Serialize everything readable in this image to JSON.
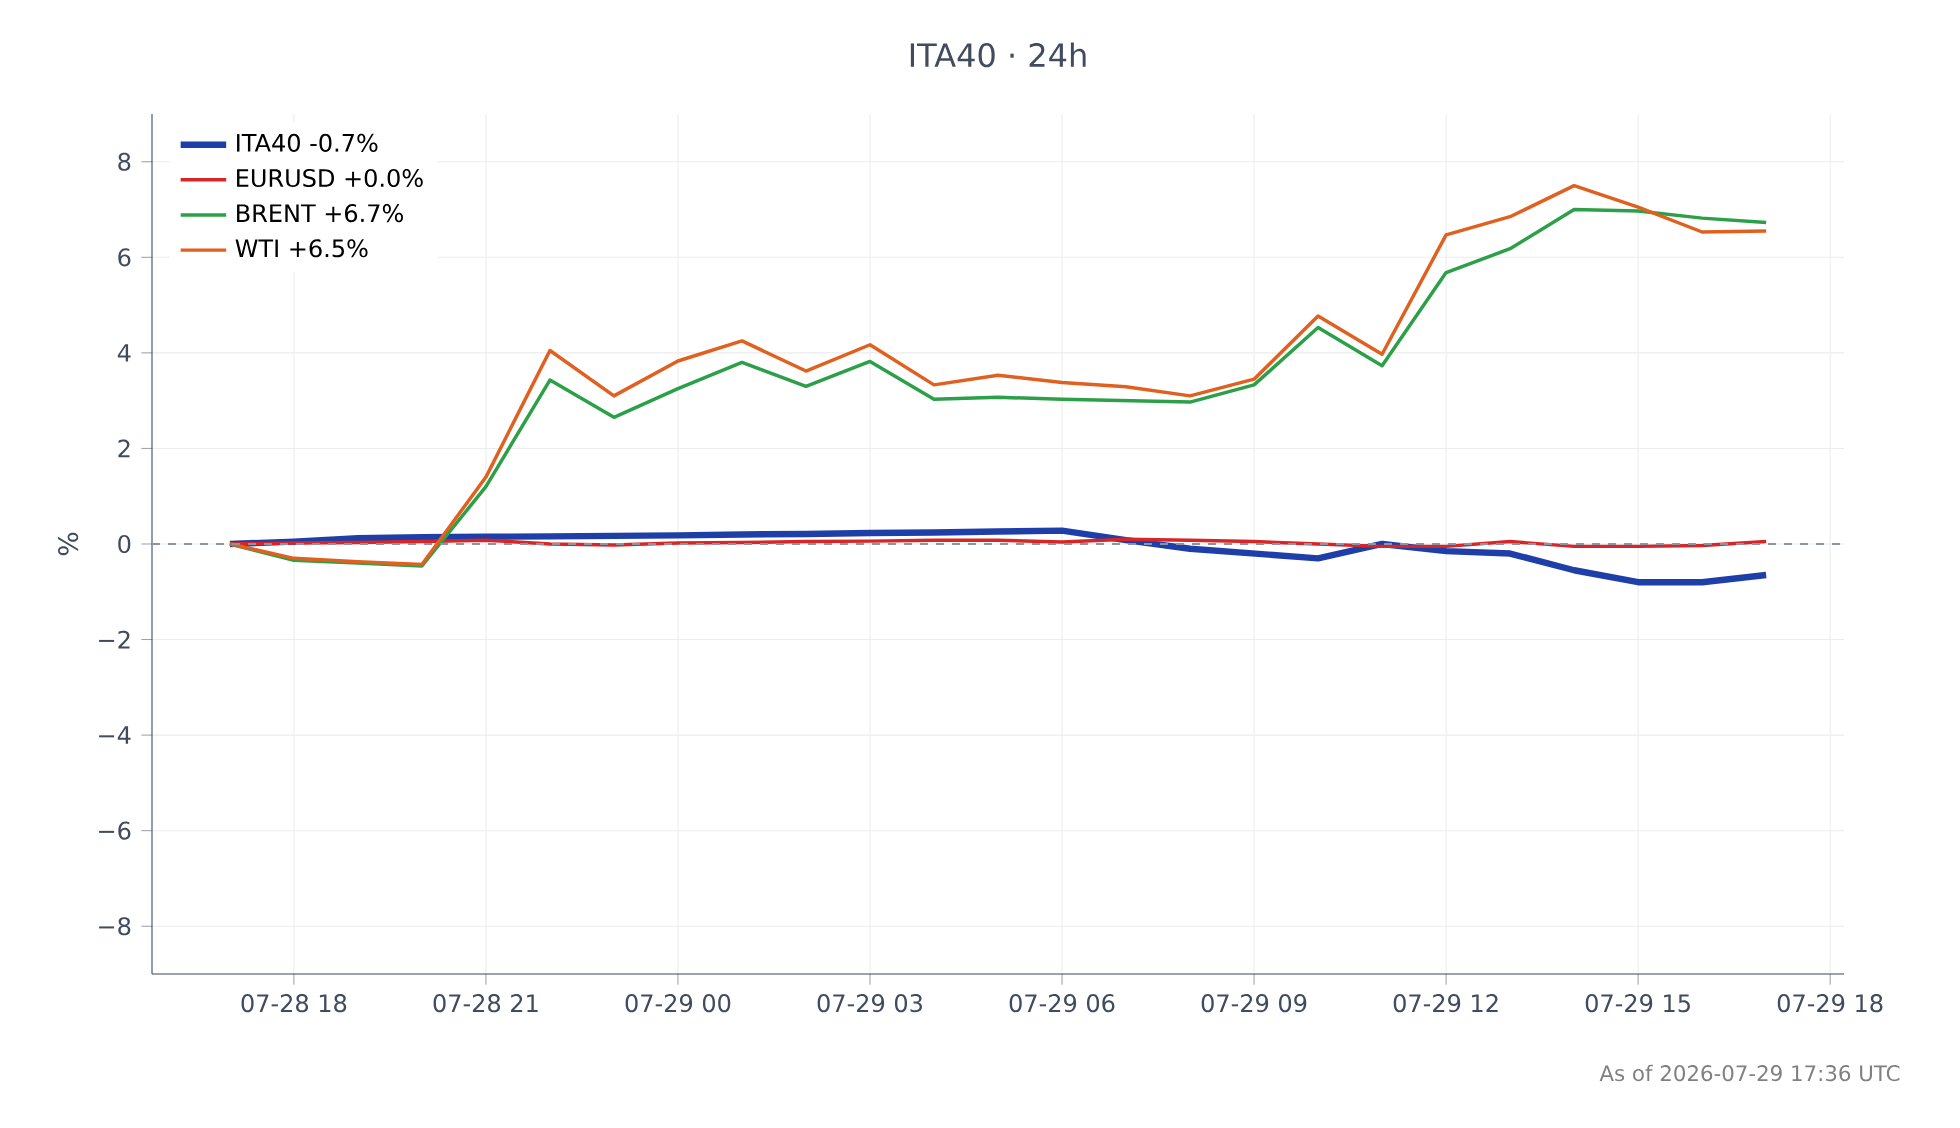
{
  "chart_data": {
    "type": "line",
    "title": "ITA40 · 24h",
    "ylabel": "%",
    "x": [
      "2026-07-28T17:00",
      "2026-07-28T18:00",
      "2026-07-28T19:00",
      "2026-07-28T20:00",
      "2026-07-28T21:00",
      "2026-07-28T22:00",
      "2026-07-28T23:00",
      "2026-07-29T00:00",
      "2026-07-29T01:00",
      "2026-07-29T02:00",
      "2026-07-29T03:00",
      "2026-07-29T04:00",
      "2026-07-29T05:00",
      "2026-07-29T06:00",
      "2026-07-29T07:00",
      "2026-07-29T08:00",
      "2026-07-29T09:00",
      "2026-07-29T10:00",
      "2026-07-29T11:00",
      "2026-07-29T12:00",
      "2026-07-29T13:00",
      "2026-07-29T14:00",
      "2026-07-29T15:00",
      "2026-07-29T16:00",
      "2026-07-29T17:00"
    ],
    "series": [
      {
        "name": "ITA40 -0.7%",
        "color": "#1f3fa8",
        "values": [
          0,
          0.05,
          0.12,
          0.14,
          0.15,
          0.16,
          0.17,
          0.18,
          0.2,
          0.21,
          0.23,
          0.24,
          0.26,
          0.28,
          0.08,
          -0.1,
          -0.2,
          -0.3,
          0.0,
          -0.15,
          -0.2,
          -0.55,
          -0.8,
          -0.8,
          -0.65
        ]
      },
      {
        "name": "EURUSD +0.0%",
        "color": "#d62728",
        "values": [
          0,
          0.02,
          0.03,
          0.05,
          0.08,
          0.0,
          -0.02,
          0.02,
          0.03,
          0.05,
          0.06,
          0.08,
          0.08,
          0.04,
          0.1,
          0.08,
          0.05,
          0.0,
          -0.05,
          -0.05,
          0.05,
          -0.05,
          -0.05,
          -0.03,
          0.05
        ]
      },
      {
        "name": "BRENT +6.7%",
        "color": "#2ca048",
        "values": [
          0,
          -0.34,
          -0.4,
          -0.46,
          1.2,
          3.43,
          2.65,
          3.25,
          3.8,
          3.3,
          3.82,
          3.03,
          3.07,
          3.03,
          3.0,
          2.97,
          3.33,
          4.53,
          3.73,
          5.68,
          6.18,
          7.0,
          6.97,
          6.82,
          6.73
        ]
      },
      {
        "name": "WTI +6.5%",
        "color": "#e0601f",
        "values": [
          0,
          -0.3,
          -0.37,
          -0.43,
          1.4,
          4.05,
          3.1,
          3.83,
          4.25,
          3.62,
          4.17,
          3.33,
          3.53,
          3.38,
          3.29,
          3.1,
          3.45,
          4.77,
          3.97,
          6.47,
          6.85,
          7.5,
          7.05,
          6.53,
          6.55
        ]
      }
    ],
    "xlim": [
      "2026-07-28T15:47",
      "2026-07-29T18:13"
    ],
    "xticks": [
      {
        "value": "2026-07-28T18:00",
        "label": "07-28 18"
      },
      {
        "value": "2026-07-28T21:00",
        "label": "07-28 21"
      },
      {
        "value": "2026-07-29T00:00",
        "label": "07-29 00"
      },
      {
        "value": "2026-07-29T03:00",
        "label": "07-29 03"
      },
      {
        "value": "2026-07-29T06:00",
        "label": "07-29 06"
      },
      {
        "value": "2026-07-29T09:00",
        "label": "07-29 09"
      },
      {
        "value": "2026-07-29T12:00",
        "label": "07-29 12"
      },
      {
        "value": "2026-07-29T15:00",
        "label": "07-29 15"
      },
      {
        "value": "2026-07-29T18:00",
        "label": "07-29 18"
      }
    ],
    "ylim": [
      -9,
      9
    ],
    "yticks": [
      {
        "value": -8,
        "label": "−8"
      },
      {
        "value": -6,
        "label": "−6"
      },
      {
        "value": -4,
        "label": "−4"
      },
      {
        "value": -2,
        "label": "−2"
      },
      0,
      2,
      4,
      6,
      8
    ],
    "ref_lines": [
      {
        "axis": "y",
        "value": 0,
        "color": "#8a94a6",
        "line_style": "dashed"
      }
    ],
    "grid": true,
    "legend": "top left",
    "marker": "none",
    "line_style": "solid",
    "annotations": [
      "As of 2026-07-29 17:36 UTC"
    ]
  }
}
